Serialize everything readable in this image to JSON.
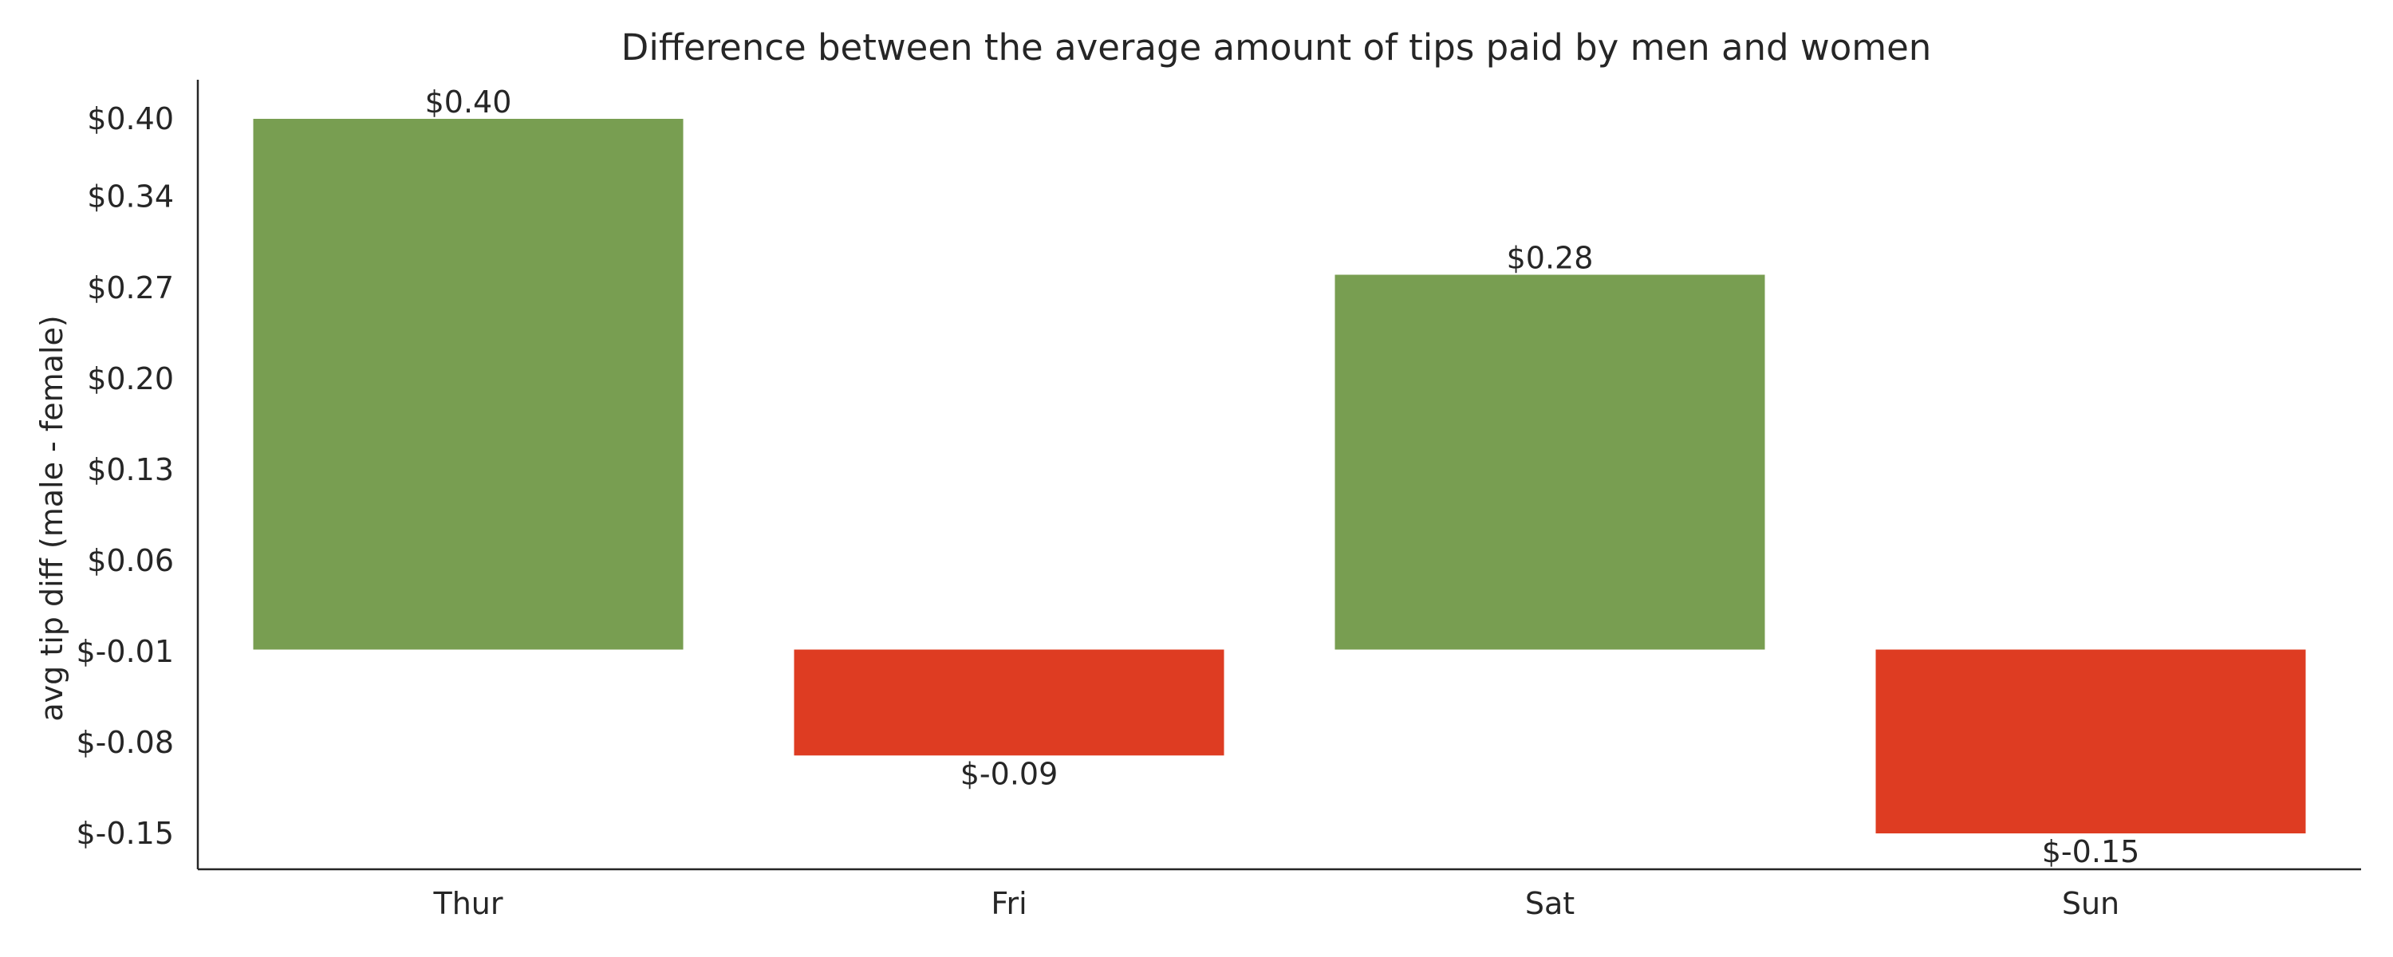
{
  "chart_data": {
    "type": "bar",
    "title": "Difference between the average amount of tips paid by men and women",
    "xlabel": "",
    "ylabel": "avg tip diff (male - female)",
    "categories": [
      "Thur",
      "Fri",
      "Sat",
      "Sun"
    ],
    "values": [
      0.4,
      -0.09,
      0.28,
      -0.15
    ],
    "value_labels": [
      "$0.40",
      "$-0.09",
      "$0.28",
      "$-0.15"
    ],
    "y_ticks": [
      0.4,
      0.34,
      0.27,
      0.2,
      0.13,
      0.06,
      -0.01,
      -0.08,
      -0.15
    ],
    "y_tick_labels": [
      "$0.40",
      "$0.34",
      "$0.27",
      "$0.20",
      "$0.13",
      "$0.06",
      "$-0.01",
      "$-0.08",
      "$-0.15"
    ],
    "ylim": [
      -0.177,
      0.426
    ],
    "grid": false,
    "legend": "none",
    "colors": {
      "positive": "#789e51",
      "negative": "#de3c22",
      "text": "#262626",
      "axis": "#262626",
      "background": "#ffffff"
    }
  }
}
